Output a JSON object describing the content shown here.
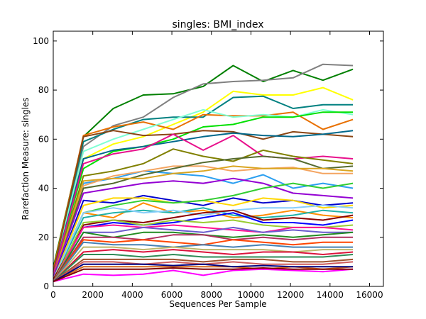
{
  "chart_data": {
    "type": "line",
    "title": "singles: BMI_index",
    "xlabel": "Sequences Per Sample",
    "ylabel": "Rarefaction Measure: singles",
    "xlim": [
      0,
      16700
    ],
    "ylim": [
      0,
      104
    ],
    "xticks": [
      0,
      2000,
      4000,
      6000,
      8000,
      10000,
      12000,
      14000,
      16000
    ],
    "yticks": [
      0,
      20,
      40,
      60,
      80,
      100
    ],
    "x": [
      10,
      1525,
      3040,
      4555,
      6070,
      7585,
      9100,
      10615,
      12130,
      13645,
      15160
    ],
    "grid": false,
    "legend": "none",
    "series": [
      {
        "color": "#008000",
        "values": [
          8,
          61,
          72.5,
          78,
          78.5,
          81.5,
          90,
          83.5,
          88,
          84,
          88.5
        ]
      },
      {
        "color": "#808080",
        "values": [
          7,
          57,
          65.5,
          69,
          77,
          82.5,
          83.5,
          84,
          85,
          90.5,
          90
        ]
      },
      {
        "color": "#ffff00",
        "values": [
          6,
          52,
          58,
          61,
          66,
          71,
          79.5,
          78,
          78,
          81,
          76
        ]
      },
      {
        "color": "#008080",
        "values": [
          6,
          59,
          64,
          68,
          69,
          69,
          77,
          77.5,
          72.5,
          74,
          74
        ]
      },
      {
        "color": "#e87000",
        "values": [
          7,
          61.5,
          65,
          67,
          64,
          70,
          69.5,
          69.5,
          71,
          64,
          68
        ]
      },
      {
        "color": "#7fffd4",
        "values": [
          6,
          55,
          60,
          64,
          68,
          72,
          69,
          70,
          69,
          72,
          70
        ]
      },
      {
        "color": "#00e000",
        "values": [
          5,
          48,
          55,
          57,
          60,
          65,
          66,
          69,
          69,
          71,
          71
        ]
      },
      {
        "color": "#8b4513",
        "values": [
          6,
          61,
          63.5,
          61.5,
          62,
          63.5,
          63,
          60,
          63,
          62,
          61
        ]
      },
      {
        "color": "#00688b",
        "values": [
          5,
          52,
          55.5,
          57,
          59,
          61,
          62.5,
          61.5,
          61,
          62,
          63.5
        ]
      },
      {
        "color": "#e8108c",
        "values": [
          5,
          50,
          54,
          56,
          62,
          55.5,
          61.5,
          53,
          52,
          53,
          52
        ]
      },
      {
        "color": "#808000",
        "values": [
          4,
          45,
          47,
          50,
          56,
          53,
          51,
          55.5,
          53,
          51.5,
          50
        ]
      },
      {
        "color": "#2b9ff0",
        "values": [
          4,
          42,
          44,
          47,
          46,
          45,
          42,
          45.5,
          40,
          42,
          40
        ]
      },
      {
        "color": "#f4a460",
        "values": [
          4,
          41,
          45,
          47,
          49,
          49,
          47,
          48,
          48.5,
          46,
          46
        ]
      },
      {
        "color": "#556b2f",
        "values": [
          4,
          40,
          42,
          45.5,
          48,
          50.5,
          52,
          53,
          52,
          48,
          49
        ]
      },
      {
        "color": "#daa520",
        "values": [
          4,
          43,
          44,
          44,
          46,
          47,
          49,
          48,
          48,
          48,
          47
        ]
      },
      {
        "color": "#9400d3",
        "values": [
          4,
          38,
          40,
          42,
          43,
          42,
          44,
          42,
          38,
          37,
          36
        ]
      },
      {
        "color": "#0000cd",
        "values": [
          3,
          35,
          34,
          37,
          35,
          33,
          36,
          34,
          35,
          33,
          34
        ]
      },
      {
        "color": "#ffd700",
        "values": [
          3,
          33,
          36,
          36,
          34,
          35,
          33,
          36,
          35,
          32,
          33
        ]
      },
      {
        "color": "#32cd32",
        "values": [
          3,
          30,
          33,
          35,
          34,
          35,
          37,
          40,
          42,
          40,
          42
        ]
      },
      {
        "color": "#ff8c00",
        "values": [
          3,
          30,
          28,
          34,
          30,
          31,
          28,
          29,
          31,
          29,
          28
        ]
      },
      {
        "color": "#20b2aa",
        "values": [
          3,
          28,
          30,
          31,
          30,
          32,
          29,
          28,
          29,
          31,
          30
        ]
      },
      {
        "color": "#87cefa",
        "values": [
          3,
          30,
          32,
          30,
          31,
          29,
          31,
          32,
          32,
          33,
          32
        ]
      },
      {
        "color": "#8b0000",
        "values": [
          3,
          25,
          27,
          26,
          28,
          30,
          31,
          27,
          28,
          27,
          29
        ]
      },
      {
        "color": "#0000ff",
        "values": [
          2,
          24,
          26,
          25,
          26,
          28,
          30,
          26,
          26,
          25,
          27
        ]
      },
      {
        "color": "#9acd32",
        "values": [
          2,
          26,
          27,
          25,
          27,
          26,
          27,
          25,
          24,
          24,
          25
        ]
      },
      {
        "color": "#ff1493",
        "values": [
          2,
          24,
          25,
          24,
          25,
          24,
          23,
          22,
          24,
          24,
          23
        ]
      },
      {
        "color": "#6a5acd",
        "values": [
          2,
          22,
          22,
          24,
          23,
          22,
          24,
          22,
          23,
          22,
          22
        ]
      },
      {
        "color": "#228b22",
        "values": [
          2,
          22,
          20,
          22,
          22,
          21,
          20,
          21,
          20,
          21,
          22
        ]
      },
      {
        "color": "#b03060",
        "values": [
          2,
          20,
          20,
          19,
          21,
          21,
          19,
          20,
          19,
          20,
          20
        ]
      },
      {
        "color": "#ff4500",
        "values": [
          2,
          19,
          18,
          19,
          18,
          17,
          19,
          18,
          17,
          18,
          18
        ]
      },
      {
        "color": "#4682b4",
        "values": [
          2,
          18,
          17,
          17,
          16,
          17,
          16,
          17,
          16,
          16,
          16
        ]
      },
      {
        "color": "#bdb76b",
        "values": [
          2,
          16,
          16,
          15,
          16,
          15,
          15,
          15,
          14,
          15,
          15
        ]
      },
      {
        "color": "#dc143c",
        "values": [
          2,
          14,
          15,
          14,
          15,
          14,
          13,
          14,
          14,
          13,
          14
        ]
      },
      {
        "color": "#2e8b57",
        "values": [
          2,
          13,
          13,
          12,
          13,
          12,
          12,
          12,
          12,
          12,
          13
        ]
      },
      {
        "color": "#a0522d",
        "values": [
          2,
          11,
          11,
          11,
          11,
          10,
          11,
          11,
          10,
          10,
          11
        ]
      },
      {
        "color": "#cd5c5c",
        "values": [
          2,
          10,
          10,
          9,
          10,
          9,
          10,
          9,
          9,
          9,
          10
        ]
      },
      {
        "color": "#d2691e",
        "values": [
          2,
          8,
          8,
          8,
          8,
          8,
          8,
          7,
          8,
          7,
          8
        ]
      },
      {
        "color": "#000080",
        "values": [
          2,
          9,
          9,
          9,
          8.5,
          9,
          8,
          8.5,
          8,
          8,
          8
        ]
      },
      {
        "color": "#ff00ff",
        "values": [
          2,
          5,
          4.5,
          5,
          6.5,
          4.5,
          6.5,
          7,
          6.5,
          6,
          7
        ]
      },
      {
        "color": "#800000",
        "values": [
          2,
          7,
          7,
          7,
          7.5,
          7,
          7,
          7.5,
          7,
          7,
          7
        ]
      }
    ]
  }
}
